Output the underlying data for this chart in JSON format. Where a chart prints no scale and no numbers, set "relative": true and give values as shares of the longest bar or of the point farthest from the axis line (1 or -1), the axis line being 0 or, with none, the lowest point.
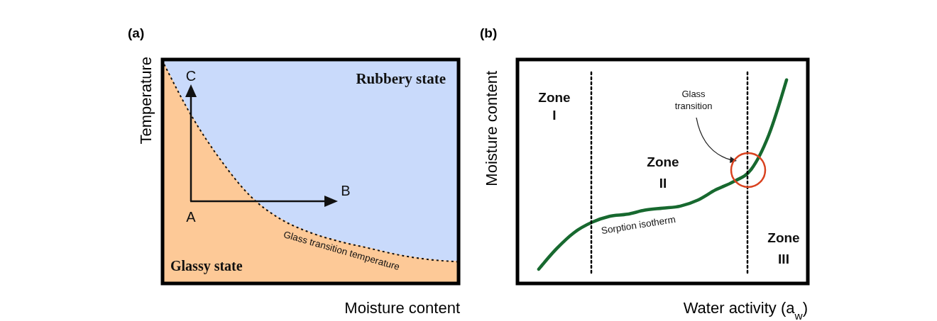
{
  "chart_data": [
    {
      "type": "area",
      "title": "(a)",
      "xlabel": "Moisture content",
      "ylabel": "Temperature",
      "relative": true,
      "stacked": true,
      "line_style": "dotted",
      "categories": [
        null,
        null,
        null,
        null,
        null,
        null,
        null,
        null,
        null,
        null,
        null
      ],
      "series": [
        {
          "name": "Glassy state",
          "color": "#fdc997",
          "values": [
            1,
            0.75,
            0.55,
            0.39,
            0.29,
            0.23,
            0.19,
            0.16,
            0.13,
            0.11,
            0.1
          ]
        },
        {
          "name": "Rubbery state",
          "color": "#c9dafb",
          "values": [
            0,
            0.25,
            0.45,
            0.61,
            0.71,
            0.77,
            0.81,
            0.84,
            0.87,
            0.89,
            0.9
          ]
        }
      ],
      "annotations": [
        "A",
        "B",
        "C",
        "Glass transition temperature"
      ]
    },
    {
      "type": "line",
      "title": "(b)",
      "xlabel": "Water activity (a$_{w}$)",
      "ylabel": "Moisture content",
      "relative": true,
      "categories": [
        null,
        null,
        null,
        null,
        null,
        null,
        null,
        null,
        null,
        null,
        null,
        null,
        null,
        null,
        null
      ],
      "series": [
        {
          "name": "Sorption isotherm",
          "color": "#17692f",
          "values": [
            0.07,
            0.17,
            0.25,
            0.3,
            0.33,
            0.34,
            0.36,
            0.37,
            0.38,
            0.41,
            0.46,
            0.5,
            0.56,
            0.73,
            1
          ]
        }
      ],
      "annotations": [
        "Zone\nI",
        "Zone\nII",
        "Zone\nIII",
        "Glass\ntransition"
      ]
    }
  ]
}
